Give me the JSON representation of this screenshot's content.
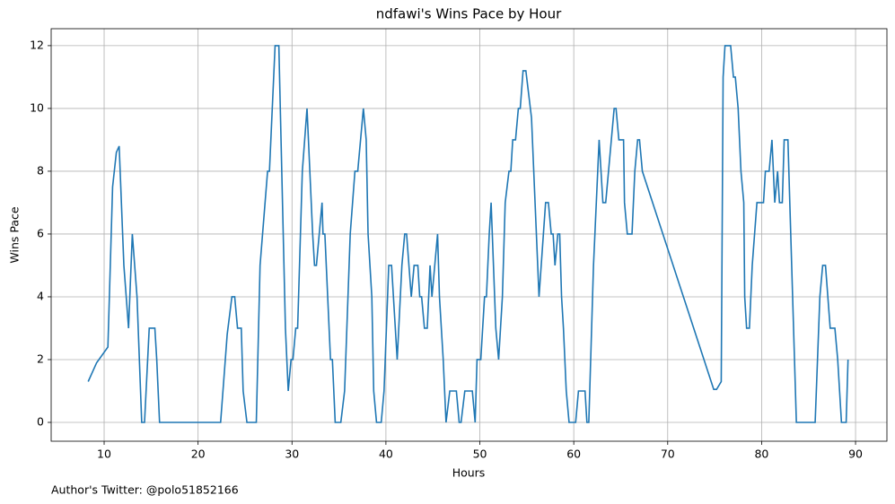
{
  "chart_data": {
    "type": "line",
    "title": "ndfawi's Wins Pace by Hour",
    "xlabel": "Hours",
    "ylabel": "Wins Pace",
    "annotation": "Author's Twitter: @polo51852166",
    "grid": true,
    "xlim": [
      4.36,
      93.34
    ],
    "ylim": [
      -0.6,
      12.54
    ],
    "xticks": [
      10,
      20,
      30,
      40,
      50,
      60,
      70,
      80,
      90
    ],
    "yticks": [
      0,
      2,
      4,
      6,
      8,
      10,
      12
    ],
    "x": [
      8.3,
      9.2,
      10.4,
      10.9,
      11.3,
      11.6,
      12.1,
      12.6,
      13.0,
      13.5,
      14.0,
      14.3,
      14.8,
      15.4,
      15.6,
      15.9,
      22.4,
      23.1,
      23.6,
      23.9,
      24.2,
      24.6,
      24.8,
      25.2,
      26.2,
      26.6,
      27.4,
      27.6,
      28.2,
      28.6,
      29.3,
      29.6,
      29.9,
      30.1,
      30.4,
      30.6,
      31.1,
      31.6,
      32.2,
      32.4,
      32.6,
      33.2,
      33.3,
      33.5,
      34.1,
      34.3,
      34.6,
      35.2,
      35.6,
      36.2,
      36.7,
      37.0,
      37.6,
      37.9,
      38.1,
      38.5,
      38.7,
      39.0,
      39.5,
      39.8,
      40.3,
      40.6,
      41.2,
      41.7,
      42.0,
      42.2,
      42.7,
      43.0,
      43.4,
      43.6,
      43.8,
      44.1,
      44.4,
      44.7,
      44.9,
      45.5,
      45.7,
      46.1,
      46.4,
      46.8,
      47.5,
      47.8,
      48.0,
      48.4,
      49.2,
      49.5,
      49.7,
      50.1,
      50.5,
      50.7,
      51.0,
      51.2,
      51.7,
      52.0,
      52.4,
      52.7,
      53.1,
      53.3,
      53.5,
      53.8,
      54.1,
      54.3,
      54.6,
      54.9,
      55.5,
      56.3,
      57.0,
      57.3,
      57.6,
      57.8,
      58.0,
      58.3,
      58.5,
      58.7,
      58.9,
      59.2,
      59.5,
      60.2,
      60.5,
      61.2,
      61.4,
      61.6,
      62.1,
      62.7,
      63.1,
      63.4,
      64.0,
      64.3,
      64.5,
      64.8,
      65.3,
      65.4,
      65.7,
      66.2,
      66.5,
      66.8,
      67.0,
      67.3,
      74.9,
      75.2,
      75.7,
      75.9,
      76.1,
      76.7,
      77.0,
      77.2,
      77.5,
      77.8,
      78.1,
      78.2,
      78.4,
      78.7,
      79.0,
      79.5,
      80.2,
      80.4,
      80.8,
      81.1,
      81.4,
      81.7,
      81.9,
      82.2,
      82.4,
      82.8,
      83.2,
      83.7,
      85.7,
      86.2,
      86.5,
      86.8,
      87.3,
      87.8,
      88.1,
      88.5,
      89.0,
      89.2
    ],
    "series": [
      {
        "name": "Wins Pace",
        "color": "#1f77b4",
        "values": [
          1.3,
          1.9,
          2.4,
          7.5,
          8.6,
          8.8,
          5,
          3,
          6,
          4,
          0,
          0,
          3,
          3,
          2,
          0,
          0,
          2.8,
          4,
          4,
          3,
          3,
          1,
          0,
          0,
          5,
          8,
          8,
          12,
          12,
          3,
          1,
          2,
          2,
          3,
          3,
          8,
          10,
          6,
          5,
          5,
          7,
          6,
          6,
          2,
          2,
          0,
          0,
          1,
          6,
          8,
          8,
          10,
          9,
          6,
          4,
          1,
          0,
          0,
          1,
          5,
          5,
          2,
          5,
          6,
          6,
          4,
          5,
          5,
          4,
          4,
          3,
          3,
          5,
          4,
          6,
          4,
          2,
          0,
          1,
          1,
          0,
          0,
          1,
          1,
          0,
          2,
          2,
          4,
          4,
          6,
          7,
          3,
          2,
          4,
          7,
          8,
          8,
          9,
          9,
          10,
          10,
          11.2,
          11.2,
          9.7,
          4,
          7,
          7,
          6,
          6,
          5,
          6,
          6,
          4,
          3,
          1,
          0,
          0,
          1,
          1,
          0,
          0,
          5,
          9,
          7,
          7,
          9,
          10,
          10,
          9,
          9,
          7,
          6,
          6,
          8,
          9,
          9,
          8,
          1.05,
          1.05,
          1.3,
          11,
          12,
          12,
          11,
          11,
          10,
          8,
          7,
          4,
          3,
          3,
          5,
          7,
          7,
          8,
          8,
          9,
          7,
          8,
          7,
          7,
          9,
          9,
          5,
          0,
          0,
          4,
          5,
          5,
          3,
          3,
          2,
          0,
          0,
          2
        ]
      }
    ]
  }
}
